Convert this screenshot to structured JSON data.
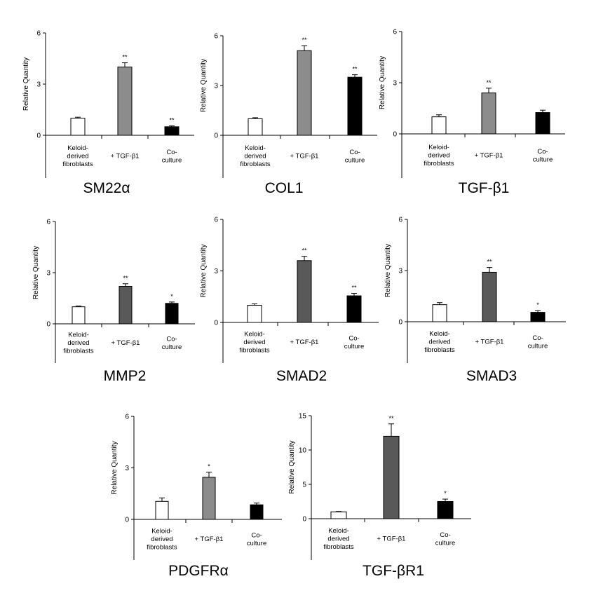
{
  "figure": {
    "colors": {
      "white_bar": "#ffffff",
      "gray_bar": "#8c8c8c",
      "dark_gray_bar": "#595959",
      "black_bar": "#000000"
    },
    "panels": [
      {
        "panel_title": "SM22α"
      },
      {
        "panel_title": "COL1"
      },
      {
        "panel_title": "TGF-β1"
      },
      {
        "panel_title": "MMP2"
      },
      {
        "panel_title": "SMAD2"
      },
      {
        "panel_title": "SMAD3"
      },
      {
        "panel_title": "PDGFRα"
      },
      {
        "panel_title": "TGF-βR1"
      }
    ]
  },
  "chart_data": [
    {
      "type": "bar",
      "title": "SM22α",
      "ylabel": "Relative Quantity",
      "ylim": [
        0,
        6
      ],
      "yticks": [
        "0",
        "3",
        "6"
      ],
      "categories": [
        "Keloid-\nderived\nfibroblasts",
        "+ TGF-β1",
        "Co-\nculture"
      ],
      "values": [
        1.0,
        4.0,
        0.5
      ],
      "errors": [
        0.06,
        0.25,
        0.05
      ],
      "significance": [
        "",
        "**",
        "**"
      ],
      "bar_colors": [
        "#ffffff",
        "#8c8c8c",
        "#000000"
      ]
    },
    {
      "type": "bar",
      "title": "COL1",
      "ylabel": "Relative Quantity",
      "ylim": [
        0,
        6
      ],
      "yticks": [
        "0",
        "3",
        "6"
      ],
      "categories": [
        "Keloid-\nderived\nfibroblasts",
        "+ TGF-β1",
        "Co-\nculture"
      ],
      "values": [
        1.0,
        5.1,
        3.5
      ],
      "errors": [
        0.06,
        0.3,
        0.15
      ],
      "significance": [
        "",
        "**",
        "**"
      ],
      "bar_colors": [
        "#ffffff",
        "#8c8c8c",
        "#000000"
      ]
    },
    {
      "type": "bar",
      "title": "TGF-β1",
      "ylabel": "Relative Quantity",
      "ylim": [
        0,
        6
      ],
      "yticks": [
        "0",
        "3",
        "6"
      ],
      "categories": [
        "Keloid-\nderived\nfibroblasts",
        "+ TGF-β1",
        "Co-\nculture"
      ],
      "values": [
        1.0,
        2.4,
        1.25
      ],
      "errors": [
        0.12,
        0.28,
        0.14
      ],
      "significance": [
        "",
        "**",
        ""
      ],
      "bar_colors": [
        "#ffffff",
        "#8c8c8c",
        "#000000"
      ]
    },
    {
      "type": "bar",
      "title": "MMP2",
      "ylabel": "Relative Quantity",
      "ylim": [
        0,
        6
      ],
      "yticks": [
        "0",
        "3",
        "6"
      ],
      "categories": [
        "Keloid-\nderived\nfibroblasts",
        "+ TGF-β1",
        "Co-\nculture"
      ],
      "values": [
        1.0,
        2.2,
        1.2
      ],
      "errors": [
        0.04,
        0.15,
        0.08
      ],
      "significance": [
        "",
        "**",
        "*"
      ],
      "bar_colors": [
        "#ffffff",
        "#595959",
        "#000000"
      ]
    },
    {
      "type": "bar",
      "title": "SMAD2",
      "ylabel": "Relative Quantity",
      "ylim": [
        0,
        6
      ],
      "yticks": [
        "0",
        "3",
        "6"
      ],
      "categories": [
        "Keloid-\nderived\nfibroblasts",
        "+ TGF-β1",
        "Co-\nculture"
      ],
      "values": [
        1.0,
        3.6,
        1.55
      ],
      "errors": [
        0.08,
        0.25,
        0.14
      ],
      "significance": [
        "",
        "**",
        "**"
      ],
      "bar_colors": [
        "#ffffff",
        "#595959",
        "#000000"
      ]
    },
    {
      "type": "bar",
      "title": "SMAD3",
      "ylabel": "Relative Quantity",
      "ylim": [
        0,
        6
      ],
      "yticks": [
        "0",
        "3",
        "6"
      ],
      "categories": [
        "Keloid-\nderived\nfibroblasts",
        "+ TGF-β1",
        "Co-\nculture"
      ],
      "values": [
        1.0,
        2.9,
        0.55
      ],
      "errors": [
        0.12,
        0.28,
        0.1
      ],
      "significance": [
        "",
        "**",
        "*"
      ],
      "bar_colors": [
        "#ffffff",
        "#595959",
        "#000000"
      ]
    },
    {
      "type": "bar",
      "title": "PDGFRα",
      "ylabel": "Relative Quantity",
      "ylim": [
        0,
        6
      ],
      "yticks": [
        "0",
        "3",
        "6"
      ],
      "categories": [
        "Keloid-\nderived\nfibroblasts",
        "+ TGF-β1",
        "Co-\nculture"
      ],
      "values": [
        1.05,
        2.45,
        0.85
      ],
      "errors": [
        0.2,
        0.3,
        0.1
      ],
      "significance": [
        "",
        "*",
        ""
      ],
      "bar_colors": [
        "#ffffff",
        "#8c8c8c",
        "#000000"
      ]
    },
    {
      "type": "bar",
      "title": "TGF-βR1",
      "ylabel": "Relative Quantity",
      "ylim": [
        0,
        15
      ],
      "yticks": [
        "0",
        "5",
        "10",
        "15"
      ],
      "categories": [
        "Keloid-\nderived\nfibroblasts",
        "+ TGF-β1",
        "Co-\nculture"
      ],
      "values": [
        1.0,
        12.0,
        2.5
      ],
      "errors": [
        0.05,
        1.8,
        0.35
      ],
      "significance": [
        "",
        "**",
        "*"
      ],
      "bar_colors": [
        "#ffffff",
        "#595959",
        "#000000"
      ]
    }
  ]
}
